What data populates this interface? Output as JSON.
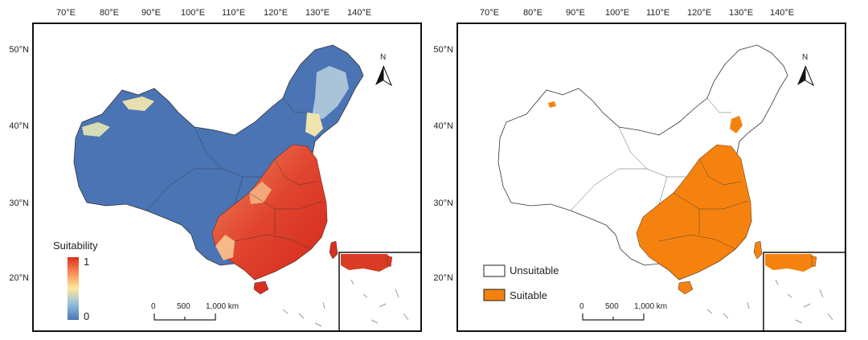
{
  "axes": {
    "lon_labels": [
      "70°E",
      "80°E",
      "90°E",
      "100°E",
      "110°E",
      "120°E",
      "130°E",
      "140°E"
    ],
    "lat_labels": [
      "50°N",
      "40°N",
      "30°N",
      "20°N"
    ]
  },
  "north_arrow": {
    "label": "N"
  },
  "left_map": {
    "legend": {
      "title": "Suitability",
      "max_label": "1",
      "min_label": "0",
      "ramp_colors": [
        "#d7301f",
        "#fc8d59",
        "#fee8a0",
        "#91bfdb",
        "#4a74b4"
      ]
    },
    "scale_bar": {
      "labels": [
        "0",
        "500",
        "1,000 km"
      ]
    },
    "colors": {
      "low": "#4a74b4",
      "mid": "#f4e6b0",
      "high": "#d7301f"
    }
  },
  "right_map": {
    "legend": [
      {
        "label": "Unsuitable",
        "color": "#ffffff"
      },
      {
        "label": "Suitable",
        "color": "#f5820f"
      }
    ],
    "scale_bar": {
      "labels": [
        "0",
        "500",
        "1,000 km"
      ]
    }
  }
}
